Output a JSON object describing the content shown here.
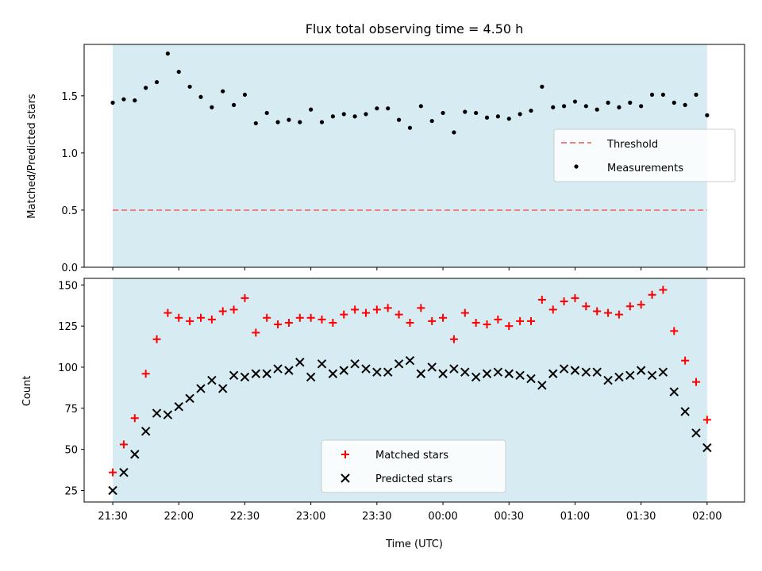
{
  "title": "Flux total observing time = 4.50 h",
  "xlabel": "Time (UTC)",
  "xticks": [
    "21:30",
    "22:00",
    "22:30",
    "23:00",
    "23:30",
    "00:00",
    "00:30",
    "01:00",
    "01:30",
    "02:00"
  ],
  "colors": {
    "span": "#add8e6",
    "threshold": "#f08080",
    "measurement": "#000000",
    "matched": "#ff0000",
    "predicted": "#000000"
  },
  "chart_data": [
    {
      "type": "scatter",
      "ylabel": "Matched/Predicted stars",
      "xlim_minutes": [
        -13,
        287
      ],
      "ylim": [
        0,
        1.95
      ],
      "yticks": [
        "0.0",
        "0.5",
        "1.0",
        "1.5"
      ],
      "ytick_values": [
        0,
        0.5,
        1.0,
        1.5
      ],
      "x_minutes": [
        0,
        5,
        10,
        15,
        20,
        25,
        30,
        35,
        40,
        45,
        50,
        55,
        60,
        65,
        70,
        75,
        80,
        85,
        90,
        95,
        100,
        105,
        110,
        115,
        120,
        125,
        130,
        135,
        140,
        145,
        150,
        155,
        160,
        165,
        170,
        175,
        180,
        185,
        190,
        195,
        200,
        205,
        210,
        215,
        220,
        225,
        230,
        235,
        240,
        245,
        250,
        255,
        260,
        265,
        270
      ],
      "threshold": {
        "name": "Threshold",
        "value": 0.5,
        "style": "dashed"
      },
      "series": [
        {
          "name": "Measurements",
          "values": [
            1.44,
            1.47,
            1.46,
            1.57,
            1.62,
            1.87,
            1.71,
            1.58,
            1.49,
            1.4,
            1.54,
            1.42,
            1.51,
            1.26,
            1.35,
            1.27,
            1.29,
            1.27,
            1.38,
            1.27,
            1.32,
            1.34,
            1.32,
            1.34,
            1.39,
            1.39,
            1.29,
            1.22,
            1.41,
            1.28,
            1.35,
            1.18,
            1.36,
            1.35,
            1.31,
            1.32,
            1.3,
            1.34,
            1.37,
            1.58,
            1.4,
            1.41,
            1.45,
            1.41,
            1.38,
            1.44,
            1.4,
            1.44,
            1.41,
            1.51,
            1.51,
            1.44,
            1.42,
            1.51,
            1.33
          ]
        }
      ],
      "legend": "center-right"
    },
    {
      "type": "scatter",
      "ylabel": "Count",
      "xlim_minutes": [
        -13,
        287
      ],
      "ylim": [
        18,
        154
      ],
      "yticks": [
        "25",
        "50",
        "75",
        "100",
        "125",
        "150"
      ],
      "ytick_values": [
        25,
        50,
        75,
        100,
        125,
        150
      ],
      "x_minutes": [
        0,
        5,
        10,
        15,
        20,
        25,
        30,
        35,
        40,
        45,
        50,
        55,
        60,
        65,
        70,
        75,
        80,
        85,
        90,
        95,
        100,
        105,
        110,
        115,
        120,
        125,
        130,
        135,
        140,
        145,
        150,
        155,
        160,
        165,
        170,
        175,
        180,
        185,
        190,
        195,
        200,
        205,
        210,
        215,
        220,
        225,
        230,
        235,
        240,
        245,
        250,
        255,
        260,
        265,
        270
      ],
      "series": [
        {
          "name": "Matched stars",
          "marker": "plus",
          "values": [
            36,
            53,
            69,
            96,
            117,
            133,
            130,
            128,
            130,
            129,
            134,
            135,
            142,
            121,
            130,
            126,
            127,
            130,
            130,
            129,
            127,
            132,
            135,
            133,
            135,
            136,
            132,
            127,
            136,
            128,
            130,
            117,
            133,
            127,
            126,
            129,
            125,
            128,
            128,
            141,
            135,
            140,
            142,
            137,
            134,
            133,
            132,
            137,
            138,
            144,
            147,
            122,
            104,
            91,
            68
          ]
        },
        {
          "name": "Predicted stars",
          "marker": "x",
          "values": [
            25,
            36,
            47,
            61,
            72,
            71,
            76,
            81,
            87,
            92,
            87,
            95,
            94,
            96,
            96,
            99,
            98,
            103,
            94,
            102,
            96,
            98,
            102,
            99,
            97,
            97,
            102,
            104,
            96,
            100,
            96,
            99,
            97,
            94,
            96,
            97,
            96,
            95,
            93,
            89,
            96,
            99,
            98,
            97,
            97,
            92,
            94,
            95,
            98,
            95,
            97,
            85,
            73,
            60,
            51
          ]
        }
      ],
      "legend": "lower-center"
    }
  ]
}
